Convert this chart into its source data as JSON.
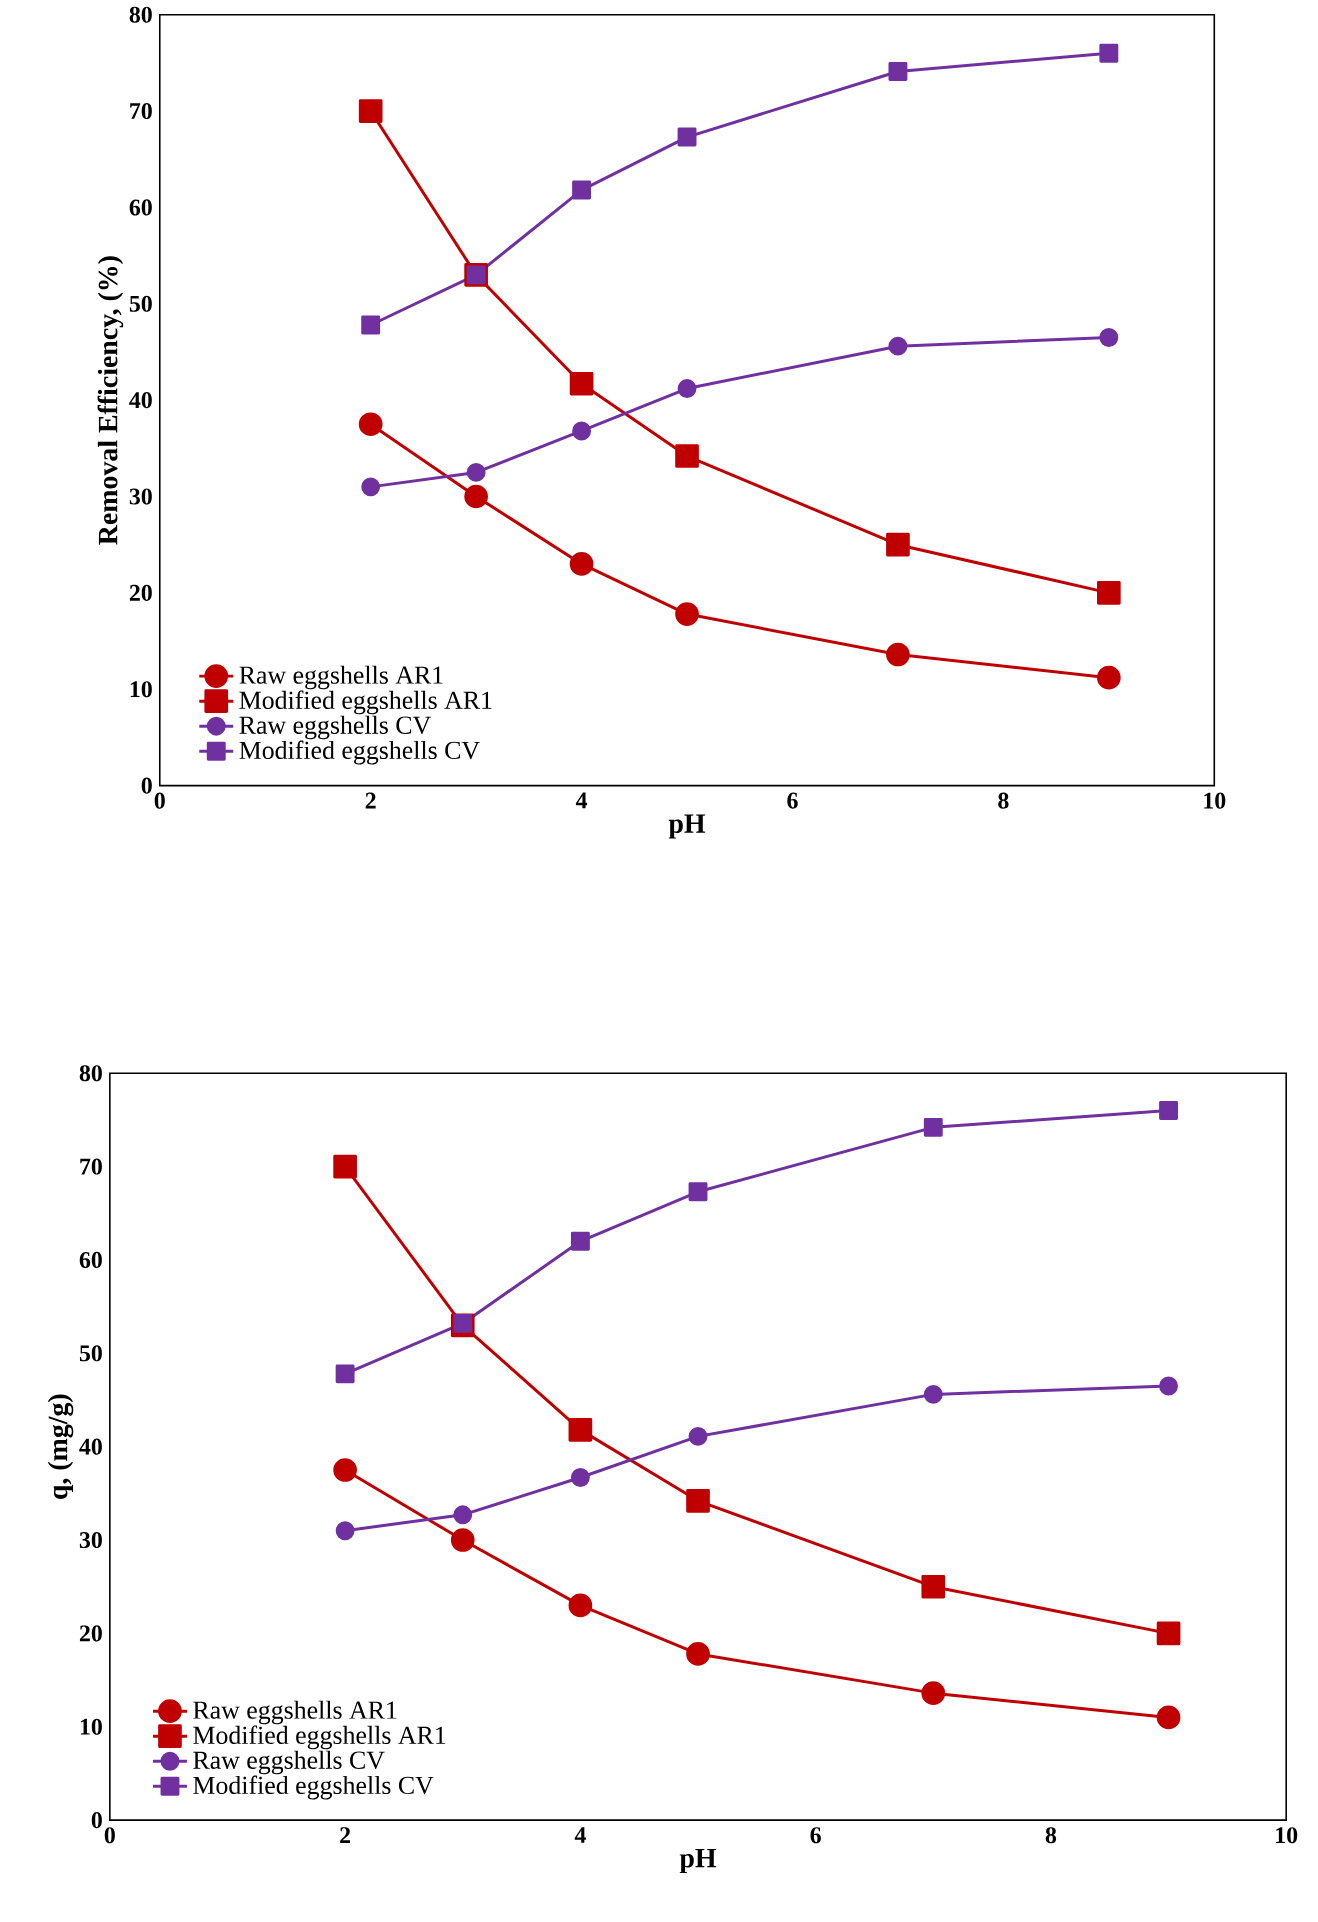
{
  "chart_data": [
    {
      "type": "line",
      "xlabel": "pH",
      "ylabel": "Removal Efficiency, (%)",
      "xlim": [
        0,
        10
      ],
      "ylim": [
        0,
        80
      ],
      "xticks": [
        0,
        2,
        4,
        6,
        8,
        10
      ],
      "yticks": [
        0,
        10,
        20,
        30,
        40,
        50,
        60,
        70,
        80
      ],
      "legend": "bottom left",
      "line_style": "solid",
      "x": [
        2,
        3,
        4,
        5,
        7,
        9
      ],
      "series": [
        {
          "name": "Raw eggshells AR1",
          "color": "#c00000",
          "marker": "circle",
          "values": [
            37.5,
            30,
            23,
            17.8,
            13.6,
            11.2
          ]
        },
        {
          "name": "Modified eggshells AR1",
          "color": "#c00000",
          "marker": "square",
          "values": [
            70,
            53,
            41.7,
            34.2,
            25,
            20
          ]
        },
        {
          "name": "Raw eggshells CV",
          "color": "#7030a0",
          "marker": "circle",
          "values": [
            31,
            32.5,
            36.8,
            41.2,
            45.6,
            46.5
          ]
        },
        {
          "name": "Modified eggshells CV",
          "color": "#7030a0",
          "marker": "square",
          "values": [
            47.8,
            53,
            61.8,
            67.3,
            74.1,
            76
          ]
        }
      ]
    },
    {
      "type": "line",
      "xlabel": "pH",
      "ylabel": "q, (mg/g)",
      "xlim": [
        0,
        10
      ],
      "ylim": [
        0,
        80
      ],
      "xticks": [
        0,
        2,
        4,
        6,
        8,
        10
      ],
      "yticks": [
        0,
        10,
        20,
        30,
        40,
        50,
        60,
        70,
        80
      ],
      "legend": "bottom left",
      "line_style": "solid",
      "x": [
        2,
        3,
        4,
        5,
        7,
        9
      ],
      "series": [
        {
          "name": "Raw eggshells AR1",
          "color": "#c00000",
          "marker": "circle",
          "values": [
            37.5,
            30,
            23,
            17.8,
            13.6,
            11.0
          ]
        },
        {
          "name": "Modified eggshells AR1",
          "color": "#c00000",
          "marker": "square",
          "values": [
            70,
            53,
            41.8,
            34.2,
            25,
            20
          ]
        },
        {
          "name": "Raw eggshells CV",
          "color": "#7030a0",
          "marker": "circle",
          "values": [
            31,
            32.7,
            36.7,
            41.1,
            45.6,
            46.5
          ]
        },
        {
          "name": "Modified eggshells CV",
          "color": "#7030a0",
          "marker": "square",
          "values": [
            47.8,
            53.2,
            62,
            67.3,
            74.2,
            76
          ]
        }
      ]
    }
  ]
}
